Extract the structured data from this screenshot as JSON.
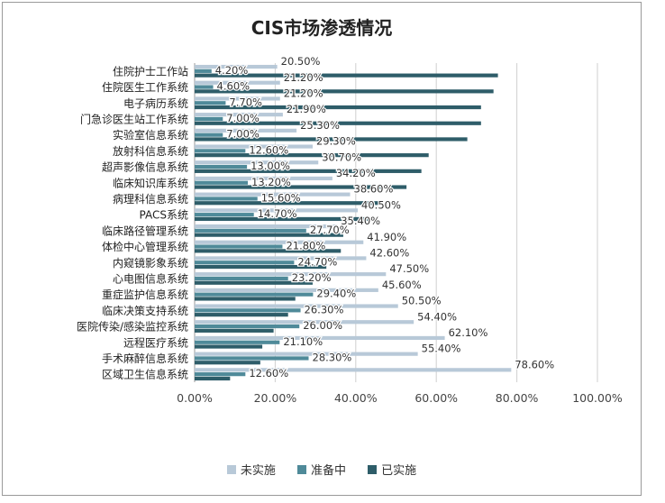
{
  "chart_data": {
    "type": "bar",
    "orientation": "horizontal",
    "title": "CIS市场渗透情况",
    "xlim": [
      0,
      100
    ],
    "x_ticks": [
      "0.00%",
      "20.00%",
      "40.00%",
      "60.00%",
      "80.00%",
      "100.00%"
    ],
    "grid": true,
    "legend_position": "bottom",
    "categories": [
      "住院护士工作站",
      "住院医生工作系统",
      "电子病历系统",
      "门急诊医生站工作系统",
      "实验室信息系统",
      "放射科信息系统",
      "超声影像信息系统",
      "临床知识库系统",
      "病理科信息系统",
      "PACS系统",
      "临床路径管理系统",
      "体检中心管理系统",
      "内窥镜影象系统",
      "心电图信息系统",
      "重症监护信息系统",
      "临床决策支持系统",
      "医院传染/感染监控系统",
      "远程医疗系统",
      "手术麻醉信息系统",
      "区域卫生信息系统"
    ],
    "series": [
      {
        "name": "未实施",
        "color": "#b8c9d8",
        "values": [
          20.5,
          21.2,
          21.2,
          21.9,
          25.3,
          29.3,
          30.7,
          34.2,
          38.6,
          40.5,
          35.4,
          41.9,
          42.6,
          47.5,
          45.6,
          50.5,
          54.4,
          62.1,
          55.4,
          78.6
        ],
        "labels": [
          "20.50%",
          "21.20%",
          "21.20%",
          "21.90%",
          "25.30%",
          "29.30%",
          "30.70%",
          "34.20%",
          "38.60%",
          "40.50%",
          "35.40%",
          "41.90%",
          "42.60%",
          "47.50%",
          "45.60%",
          "50.50%",
          "54.40%",
          "62.10%",
          "55.40%",
          "78.60%"
        ]
      },
      {
        "name": "准备中",
        "color": "#4f8a99",
        "values": [
          4.2,
          4.6,
          7.7,
          7.0,
          7.0,
          12.6,
          13.0,
          13.2,
          15.6,
          14.7,
          27.7,
          21.8,
          24.7,
          23.2,
          29.4,
          26.3,
          26.0,
          21.1,
          28.3,
          12.6
        ],
        "labels": [
          "4.20%",
          "4.60%",
          "7.70%",
          "7.00%",
          "7.00%",
          "12.60%",
          "13.00%",
          "13.20%",
          "15.60%",
          "14.70%",
          "27.70%",
          "21.80%",
          "24.70%",
          "23.20%",
          "29.40%",
          "26.30%",
          "26.00%",
          "21.10%",
          "28.30%",
          "12.60%"
        ]
      },
      {
        "name": "已实施",
        "color": "#2e5d69",
        "values": [
          75.3,
          74.2,
          71.1,
          71.1,
          67.7,
          58.1,
          56.3,
          52.6,
          45.8,
          44.8,
          36.9,
          36.3,
          32.7,
          29.3,
          25.0,
          23.2,
          19.6,
          16.8,
          16.3,
          8.8
        ]
      }
    ]
  }
}
